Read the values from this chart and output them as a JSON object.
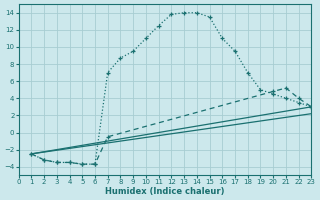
{
  "xlabel": "Humidex (Indice chaleur)",
  "xlim": [
    0,
    23
  ],
  "ylim": [
    -5,
    15
  ],
  "xticks": [
    0,
    1,
    2,
    3,
    4,
    5,
    6,
    7,
    8,
    9,
    10,
    11,
    12,
    13,
    14,
    15,
    16,
    17,
    18,
    19,
    20,
    21,
    22,
    23
  ],
  "yticks": [
    -4,
    -2,
    0,
    2,
    4,
    6,
    8,
    10,
    12,
    14
  ],
  "bg_color": "#cce8ec",
  "line_color": "#1a7070",
  "grid_color": "#a8cdd2",
  "curve1_x": [
    1,
    2,
    3,
    4,
    5,
    6,
    7,
    8,
    9,
    10,
    11,
    12,
    13,
    14,
    15,
    16,
    17,
    18,
    19,
    20,
    21,
    22,
    23
  ],
  "curve1_y": [
    -2.5,
    -3.2,
    -3.5,
    -3.5,
    -3.7,
    -3.7,
    7.0,
    8.7,
    9.5,
    11.0,
    12.5,
    13.8,
    14.0,
    14.0,
    13.5,
    11.0,
    9.5,
    7.0,
    5.0,
    4.5,
    4.0,
    3.5,
    3.0
  ],
  "curve2_x": [
    1,
    2,
    3,
    4,
    5,
    6,
    7,
    20,
    21,
    22,
    23
  ],
  "curve2_y": [
    -2.5,
    -3.2,
    -3.5,
    -3.5,
    -3.7,
    -3.7,
    -0.5,
    4.8,
    5.2,
    4.0,
    3.0
  ],
  "line3_x": [
    1,
    7,
    23
  ],
  "line3_y": [
    -2.5,
    -0.5,
    5.2
  ],
  "line4_x": [
    1,
    7,
    23
  ],
  "line4_y": [
    -2.5,
    -0.5,
    3.0
  ],
  "line5_x": [
    1,
    23
  ],
  "line5_y": [
    -2.5,
    3.0
  ],
  "line6_x": [
    1,
    23
  ],
  "line6_y": [
    -2.5,
    2.2
  ]
}
